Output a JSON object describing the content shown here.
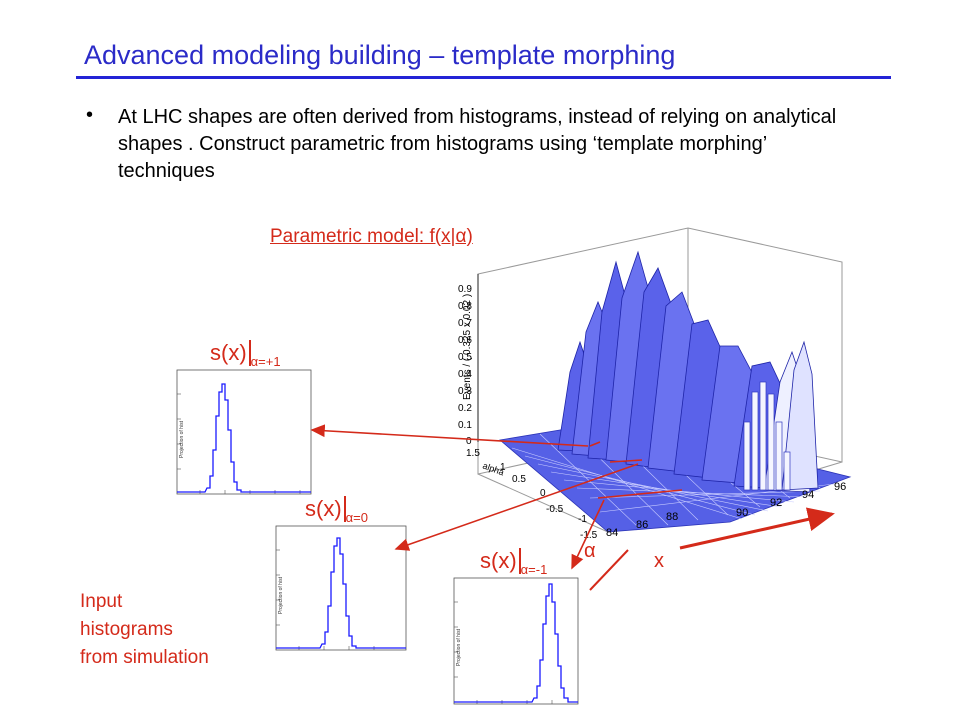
{
  "slide": {
    "title": "Advanced modeling building  – template morphing",
    "bullet": "•",
    "bullet_text": "At LHC shapes are often derived from histograms, instead of relying on analytical shapes . Construct parametric from histograms using ‘template morphing’ techniques",
    "parametric_label": "Parametric model: f(x|α)",
    "input_label_lines": [
      "Input",
      "histograms",
      "from simulation"
    ],
    "x_arrow_label": "x",
    "alpha_arrow_label": "α"
  },
  "histograms": [
    {
      "label_main": "s(x)",
      "label_sub": "α=+1",
      "peak_x": 88
    },
    {
      "label_main": "s(x)",
      "label_sub": "α=0",
      "peak_x": 92
    },
    {
      "label_main": "s(x)",
      "label_sub": "α=-1",
      "peak_x": 94
    }
  ],
  "plot3d": {
    "z_axis_title": "Events / ( 0.325 x 0.02 )",
    "z_ticks": [
      "0",
      "0.1",
      "0.2",
      "0.3",
      "0.4",
      "0.5",
      "0.6",
      "0.7",
      "0.8",
      "0.9"
    ],
    "alpha_axis_title": "alpha",
    "alpha_ticks": [
      "1.5",
      "1",
      "0.5",
      "0",
      "-0.5",
      "-1",
      "-1.5"
    ],
    "x_ticks": [
      "84",
      "86",
      "88",
      "90",
      "92",
      "94",
      "96"
    ]
  },
  "colors": {
    "title": "#2b2bc8",
    "annotation": "#d42a1a",
    "histogram": "#1a1aff",
    "surface": "#4b50e0"
  }
}
